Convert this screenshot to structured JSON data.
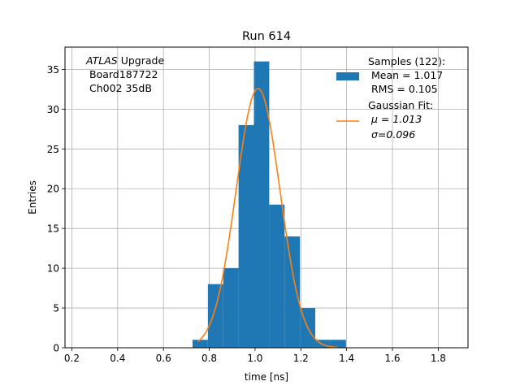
{
  "chart_data": {
    "type": "bar",
    "title": "Run 614",
    "xlabel": "time [ns]",
    "ylabel": "Entries",
    "xlim": [
      0.17,
      1.93
    ],
    "ylim": [
      0,
      37.8
    ],
    "grid": true,
    "xticks": [
      "0.2",
      "0.4",
      "0.6",
      "0.8",
      "1.0",
      "1.2",
      "1.4",
      "1.6",
      "1.8"
    ],
    "xtick_values": [
      0.2,
      0.4,
      0.6,
      0.8,
      1.0,
      1.2,
      1.4,
      1.6,
      1.8
    ],
    "yticks": [
      "0",
      "5",
      "10",
      "15",
      "20",
      "25",
      "30",
      "35"
    ],
    "ytick_values": [
      0,
      5,
      10,
      15,
      20,
      25,
      30,
      35
    ],
    "annotation": {
      "line1_italic": "ATLAS",
      "line1_rest": " Upgrade",
      "line2": "Board187722",
      "line3": "Ch002 35dB"
    },
    "histogram": {
      "name": "Samples (122):",
      "color": "#1f77b4",
      "bins": [
        {
          "x0": 0.727,
          "x1": 0.794,
          "count": 1
        },
        {
          "x0": 0.794,
          "x1": 0.861,
          "count": 8
        },
        {
          "x0": 0.861,
          "x1": 0.928,
          "count": 10
        },
        {
          "x0": 0.928,
          "x1": 0.995,
          "count": 28
        },
        {
          "x0": 0.995,
          "x1": 1.062,
          "count": 36
        },
        {
          "x0": 1.062,
          "x1": 1.129,
          "count": 18
        },
        {
          "x0": 1.129,
          "x1": 1.196,
          "count": 14
        },
        {
          "x0": 1.196,
          "x1": 1.263,
          "count": 5
        },
        {
          "x0": 1.263,
          "x1": 1.33,
          "count": 1
        },
        {
          "x0": 1.33,
          "x1": 1.397,
          "count": 1
        }
      ]
    },
    "fit": {
      "name": "Gaussian Fit:",
      "color": "#ff7f0e",
      "mu": 1.013,
      "sigma": 0.096,
      "amplitude": 32.6,
      "x_range": [
        0.75,
        1.36
      ]
    },
    "legend": {
      "placement": "top-right",
      "samples_title": "Samples (122):",
      "samples_mean": "Mean = 1.017",
      "samples_rms": "RMS = 0.105",
      "fit_title": "Gaussian Fit:",
      "fit_mu": "μ = 1.013",
      "fit_sigma": "σ=0.096"
    }
  }
}
